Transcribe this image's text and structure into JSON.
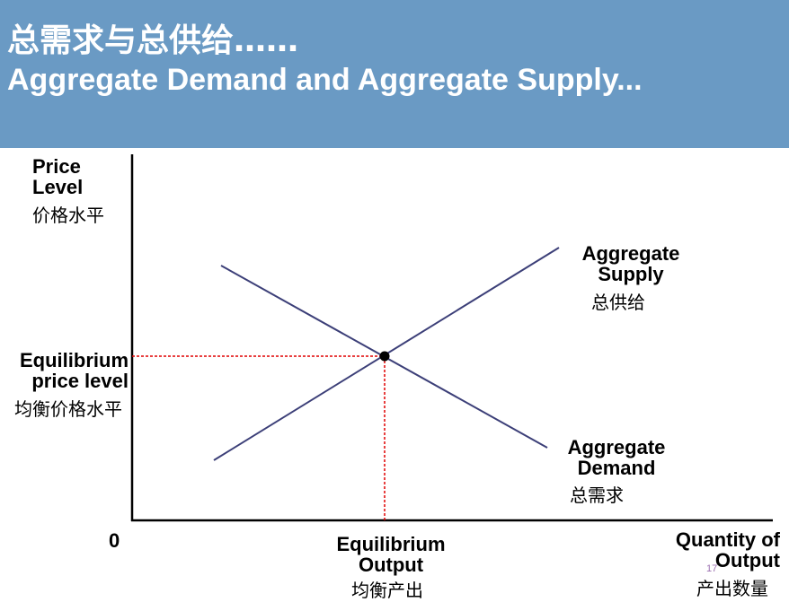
{
  "colors": {
    "header_bg": "#6a9ac4",
    "curve": "#3c3f78",
    "equilibrium_guides": "#e00000",
    "axis": "#000000"
  },
  "header": {
    "title_zh": "总需求与总供给……",
    "title_en": "Aggregate Demand and Aggregate Supply..."
  },
  "y_axis": {
    "label_en_line1": "Price",
    "label_en_line2": "Level",
    "label_zh": "价格水平"
  },
  "x_axis": {
    "origin": "0",
    "label_en_line1": "Quantity of",
    "label_en_line2": "Output",
    "label_zh": "产出数量"
  },
  "curves": {
    "supply_en_line1": "Aggregate",
    "supply_en_line2": "Supply",
    "supply_zh": "总供给",
    "demand_en_line1": "Aggregate",
    "demand_en_line2": "Demand",
    "demand_zh": "总需求"
  },
  "equilibrium": {
    "price_en_line1": "Equilibrium",
    "price_en_line2": "price level",
    "price_zh": "均衡价格水平",
    "output_en_line1": "Equilibrium",
    "output_en_line2": "Output",
    "output_zh": "均衡产出"
  },
  "page_number": "17"
}
